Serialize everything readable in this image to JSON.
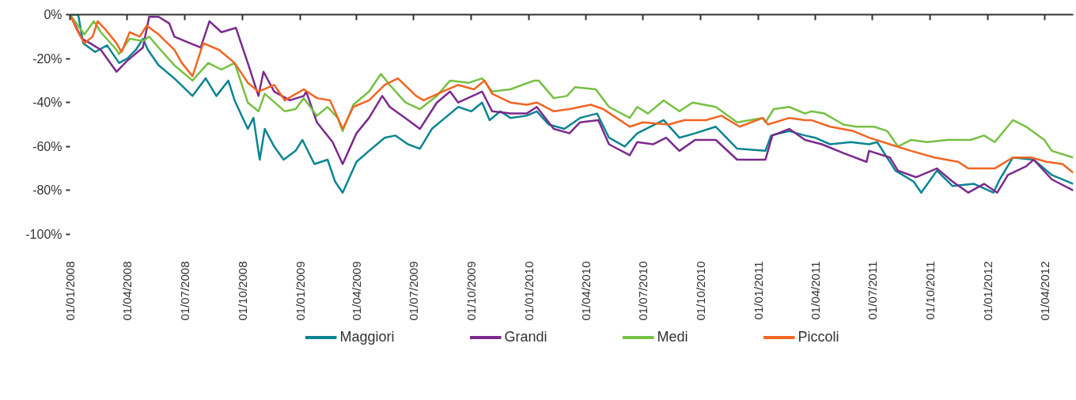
{
  "chart_data": {
    "type": "line",
    "xlim": [
      "2008-01-01",
      "2012-05-16"
    ],
    "xticks": [
      {
        "value": "2008-01-01",
        "label": "01/01/2008"
      },
      {
        "value": "2008-04-01",
        "label": "01/04/2008"
      },
      {
        "value": "2008-07-01",
        "label": "01/07/2008"
      },
      {
        "value": "2008-10-01",
        "label": "01/10/2008"
      },
      {
        "value": "2009-01-01",
        "label": "01/01/2009"
      },
      {
        "value": "2009-04-01",
        "label": "01/04/2009"
      },
      {
        "value": "2009-07-01",
        "label": "01/07/2009"
      },
      {
        "value": "2009-10-01",
        "label": "01/10/2009"
      },
      {
        "value": "2010-01-01",
        "label": "01/01/2010"
      },
      {
        "value": "2010-04-01",
        "label": "01/04/2010"
      },
      {
        "value": "2010-07-01",
        "label": "01/07/2010"
      },
      {
        "value": "2010-10-01",
        "label": "01/10/2010"
      },
      {
        "value": "2011-01-01",
        "label": "01/01/2011"
      },
      {
        "value": "2011-04-01",
        "label": "01/04/2011"
      },
      {
        "value": "2011-07-01",
        "label": "01/07/2011"
      },
      {
        "value": "2011-10-01",
        "label": "01/10/2011"
      },
      {
        "value": "2012-01-01",
        "label": "01/01/2012"
      },
      {
        "value": "2012-04-01",
        "label": "01/04/2012"
      }
    ],
    "ylim": [
      -100,
      0
    ],
    "yticks": [
      {
        "value": 0,
        "label": "0%"
      },
      {
        "value": -20,
        "label": "-20%"
      },
      {
        "value": -40,
        "label": "-40%"
      },
      {
        "value": -60,
        "label": "-60%"
      },
      {
        "value": -80,
        "label": "-80%"
      },
      {
        "value": -100,
        "label": "-100%"
      }
    ],
    "grid": false,
    "legend": "bottom",
    "line_style": "solid",
    "marker": "none",
    "series": [
      {
        "name": "Maggiori",
        "color": "#0b8493",
        "x": [
          "2008-01-01",
          "2008-01-14",
          "2008-01-22",
          "2008-02-10",
          "2008-02-29",
          "2008-03-19",
          "2008-04-01",
          "2008-04-15",
          "2008-04-26",
          "2008-05-04",
          "2008-05-21",
          "2008-06-15",
          "2008-07-14",
          "2008-08-04",
          "2008-08-21",
          "2008-09-09",
          "2008-09-19",
          "2008-10-10",
          "2008-10-19",
          "2008-10-29",
          "2008-11-06",
          "2008-11-21",
          "2008-12-06",
          "2008-12-25",
          "2009-01-05",
          "2009-01-24",
          "2009-02-14",
          "2009-02-26",
          "2009-03-10",
          "2009-04-01",
          "2009-04-21",
          "2009-05-16",
          "2009-06-02",
          "2009-06-22",
          "2009-07-11",
          "2009-07-30",
          "2009-08-20",
          "2009-09-10",
          "2009-10-01",
          "2009-10-18",
          "2009-10-30",
          "2009-11-16",
          "2009-12-02",
          "2009-12-28",
          "2010-01-13",
          "2010-02-01",
          "2010-02-26",
          "2010-03-23",
          "2010-04-19",
          "2010-05-08",
          "2010-06-02",
          "2010-06-22",
          "2010-08-03",
          "2010-08-28",
          "2010-09-22",
          "2010-10-25",
          "2010-11-28",
          "2011-01-12",
          "2011-01-21",
          "2011-02-19",
          "2011-03-16",
          "2011-04-01",
          "2011-04-25",
          "2011-05-28",
          "2011-06-26",
          "2011-07-09",
          "2011-08-07",
          "2011-09-05",
          "2011-09-17",
          "2011-10-12",
          "2011-11-06",
          "2011-12-10",
          "2012-01-10",
          "2012-01-20",
          "2012-02-10",
          "2012-03-14",
          "2012-04-12",
          "2012-05-16"
        ],
        "values": [
          0,
          0,
          -13,
          -17,
          -14,
          -22,
          -20,
          -16,
          -11,
          -16,
          -23,
          -29,
          -37,
          -29,
          -37,
          -30,
          -39,
          -52,
          -47,
          -66,
          -52,
          -60,
          -66,
          -62,
          -57,
          -68,
          -66,
          -76,
          -81,
          -67,
          -62,
          -56,
          -55,
          -59,
          -61,
          -52,
          -47,
          -42,
          -44,
          -40,
          -48,
          -44,
          -47,
          -46,
          -44,
          -50,
          -52,
          -47,
          -45,
          -56,
          -60,
          -54,
          -48,
          -56,
          -54,
          -51,
          -61,
          -62,
          -55,
          -53,
          -55,
          -56,
          -59,
          -58,
          -59,
          -58,
          -71,
          -76,
          -81,
          -71,
          -78,
          -77,
          -81,
          -75,
          -65,
          -66,
          -73,
          -77
        ]
      },
      {
        "name": "Grandi",
        "color": "#7b2a8c",
        "x": [
          "2008-01-01",
          "2008-01-20",
          "2008-02-02",
          "2008-02-19",
          "2008-03-15",
          "2008-04-01",
          "2008-04-26",
          "2008-05-06",
          "2008-05-21",
          "2008-06-07",
          "2008-06-15",
          "2008-07-10",
          "2008-07-27",
          "2008-08-10",
          "2008-08-29",
          "2008-09-21",
          "2008-10-10",
          "2008-10-27",
          "2008-11-04",
          "2008-11-21",
          "2008-12-16",
          "2009-01-07",
          "2009-01-11",
          "2009-01-28",
          "2009-02-22",
          "2009-03-10",
          "2009-04-01",
          "2009-04-21",
          "2009-05-12",
          "2009-05-24",
          "2009-06-27",
          "2009-07-11",
          "2009-08-07",
          "2009-08-28",
          "2009-09-10",
          "2009-10-18",
          "2009-11-03",
          "2009-12-02",
          "2009-12-28",
          "2010-01-13",
          "2010-02-09",
          "2010-03-06",
          "2010-03-23",
          "2010-04-21",
          "2010-05-08",
          "2010-06-10",
          "2010-06-22",
          "2010-07-17",
          "2010-08-07",
          "2010-08-28",
          "2010-09-22",
          "2010-10-25",
          "2010-11-28",
          "2011-01-12",
          "2011-01-23",
          "2011-02-19",
          "2011-03-16",
          "2011-04-12",
          "2011-05-16",
          "2011-06-22",
          "2011-06-26",
          "2011-07-29",
          "2011-08-11",
          "2011-09-09",
          "2011-10-12",
          "2011-11-06",
          "2011-12-01",
          "2011-12-26",
          "2012-01-16",
          "2012-02-02",
          "2012-03-02",
          "2012-03-14",
          "2012-04-12",
          "2012-05-16"
        ],
        "values": [
          0,
          -11,
          -13,
          -16,
          -26,
          -21,
          -15,
          -1,
          -1,
          -4,
          -10,
          -13,
          -15,
          -3,
          -8,
          -6,
          -22,
          -37,
          -26,
          -35,
          -39,
          -37,
          -35,
          -49,
          -58,
          -68,
          -54,
          -47,
          -37,
          -42,
          -49,
          -52,
          -40,
          -35,
          -40,
          -35,
          -44,
          -45,
          -45,
          -42,
          -52,
          -54,
          -49,
          -48,
          -59,
          -64,
          -58,
          -59,
          -56,
          -62,
          -57,
          -57,
          -66,
          -66,
          -55,
          -52,
          -57,
          -59,
          -63,
          -67,
          -62,
          -65,
          -71,
          -74,
          -70,
          -76,
          -81,
          -77,
          -81,
          -73,
          -69,
          -66,
          -75,
          -80
        ]
      },
      {
        "name": "Medi",
        "color": "#76c043",
        "x": [
          "2008-01-01",
          "2008-01-24",
          "2008-02-08",
          "2008-02-19",
          "2008-03-15",
          "2008-03-19",
          "2008-04-05",
          "2008-04-26",
          "2008-05-06",
          "2008-05-21",
          "2008-06-15",
          "2008-07-14",
          "2008-08-08",
          "2008-08-29",
          "2008-09-19",
          "2008-10-10",
          "2008-10-27",
          "2008-11-06",
          "2008-12-08",
          "2008-12-25",
          "2009-01-07",
          "2009-01-28",
          "2009-02-14",
          "2009-03-02",
          "2009-03-10",
          "2009-03-27",
          "2009-04-21",
          "2009-05-10",
          "2009-05-24",
          "2009-06-18",
          "2009-07-11",
          "2009-08-07",
          "2009-08-28",
          "2009-09-27",
          "2009-10-18",
          "2009-11-03",
          "2009-12-02",
          "2010-01-09",
          "2010-01-16",
          "2010-02-09",
          "2010-03-02",
          "2010-03-15",
          "2010-04-17",
          "2010-05-08",
          "2010-06-10",
          "2010-06-22",
          "2010-07-09",
          "2010-08-03",
          "2010-08-28",
          "2010-09-18",
          "2010-10-25",
          "2010-11-28",
          "2011-01-08",
          "2011-01-12",
          "2011-01-25",
          "2011-02-19",
          "2011-03-16",
          "2011-03-26",
          "2011-04-16",
          "2011-05-16",
          "2011-06-05",
          "2011-07-04",
          "2011-07-25",
          "2011-08-11",
          "2011-09-01",
          "2011-09-26",
          "2011-10-29",
          "2011-12-05",
          "2011-12-26",
          "2012-01-12",
          "2012-02-10",
          "2012-03-02",
          "2012-03-31",
          "2012-04-12",
          "2012-05-16"
        ],
        "values": [
          0,
          -9,
          -3,
          -8,
          -16,
          -18,
          -11,
          -12,
          -10,
          -15,
          -23,
          -30,
          -22,
          -25,
          -22,
          -40,
          -44,
          -36,
          -44,
          -43,
          -38,
          -46,
          -42,
          -47,
          -53,
          -41,
          -35,
          -27,
          -32,
          -40,
          -43,
          -37,
          -30,
          -31,
          -29,
          -35,
          -34,
          -30,
          -30,
          -38,
          -37,
          -33,
          -34,
          -42,
          -47,
          -42,
          -45,
          -39,
          -44,
          -40,
          -42,
          -49,
          -47,
          -49,
          -43,
          -42,
          -45,
          -44,
          -45,
          -50,
          -51,
          -51,
          -53,
          -60,
          -57,
          -58,
          -57,
          -57,
          -55,
          -58,
          -48,
          -51,
          -57,
          -62,
          -65
        ]
      },
      {
        "name": "Piccoli",
        "color": "#f26522",
        "x": [
          "2008-01-01",
          "2008-01-12",
          "2008-01-24",
          "2008-02-06",
          "2008-02-14",
          "2008-02-27",
          "2008-03-15",
          "2008-03-23",
          "2008-04-05",
          "2008-04-21",
          "2008-05-02",
          "2008-05-21",
          "2008-06-15",
          "2008-06-27",
          "2008-07-14",
          "2008-07-31",
          "2008-08-25",
          "2008-09-19",
          "2008-10-10",
          "2008-10-27",
          "2008-11-21",
          "2008-12-08",
          "2009-01-07",
          "2009-01-28",
          "2009-02-18",
          "2009-03-10",
          "2009-03-27",
          "2009-04-21",
          "2009-05-16",
          "2009-06-06",
          "2009-07-05",
          "2009-07-17",
          "2009-08-16",
          "2009-09-10",
          "2009-10-05",
          "2009-10-22",
          "2009-11-03",
          "2009-12-02",
          "2009-12-28",
          "2010-01-13",
          "2010-02-09",
          "2010-03-06",
          "2010-04-09",
          "2010-04-29",
          "2010-05-20",
          "2010-06-10",
          "2010-07-01",
          "2010-08-11",
          "2010-09-05",
          "2010-10-09",
          "2010-11-03",
          "2010-12-02",
          "2011-01-08",
          "2011-01-16",
          "2011-02-19",
          "2011-03-16",
          "2011-03-26",
          "2011-04-25",
          "2011-06-01",
          "2011-06-26",
          "2011-07-29",
          "2011-09-01",
          "2011-10-08",
          "2011-11-15",
          "2011-12-01",
          "2012-01-12",
          "2012-02-10",
          "2012-03-10",
          "2012-04-04",
          "2012-04-29",
          "2012-05-16"
        ],
        "values": [
          0,
          -7,
          -13,
          -10,
          -3,
          -7,
          -13,
          -17,
          -8,
          -10,
          -5,
          -9,
          -16,
          -22,
          -28,
          -13,
          -16,
          -22,
          -31,
          -35,
          -32,
          -39,
          -34,
          -38,
          -39,
          -52,
          -42,
          -39,
          -32,
          -29,
          -37,
          -39,
          -35,
          -32,
          -34,
          -30,
          -36,
          -40,
          -41,
          -40,
          -44,
          -43,
          -41,
          -43,
          -47,
          -51,
          -49,
          -50,
          -48,
          -48,
          -46,
          -51,
          -47,
          -50,
          -47,
          -48,
          -48,
          -51,
          -53,
          -56,
          -59,
          -62,
          -65,
          -67,
          -70,
          -70,
          -65,
          -65,
          -67,
          -68,
          -72
        ]
      }
    ]
  }
}
